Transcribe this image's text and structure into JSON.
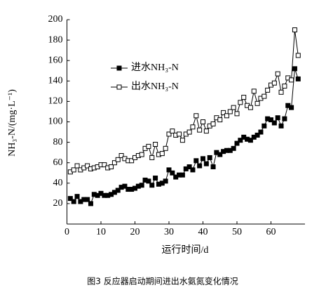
{
  "chart_data": {
    "type": "line",
    "title": "图3 反应器启动期间进出水氨氮变化情况",
    "x_label": "运行时间/d",
    "y_label": "NH₃-N/(mg·L⁻¹)",
    "x": [
      1,
      2,
      3,
      4,
      5,
      6,
      7,
      8,
      9,
      10,
      11,
      12,
      13,
      14,
      15,
      16,
      17,
      18,
      19,
      20,
      21,
      22,
      23,
      24,
      25,
      26,
      27,
      28,
      29,
      30,
      31,
      32,
      33,
      34,
      35,
      36,
      37,
      38,
      39,
      40,
      41,
      42,
      43,
      44,
      45,
      46,
      47,
      48,
      49,
      50,
      51,
      52,
      53,
      54,
      55,
      56,
      57,
      58,
      59,
      60,
      61,
      62,
      63,
      64,
      65,
      66,
      67,
      68
    ],
    "series": [
      {
        "name": "进水NH₃-N",
        "color": "#000000",
        "marker": "filled-square",
        "values": [
          25,
          22,
          27,
          22,
          24,
          24,
          20,
          29,
          28,
          30,
          28,
          28,
          29,
          31,
          33,
          36,
          37,
          34,
          34,
          35,
          37,
          38,
          43,
          42,
          38,
          45,
          39,
          40,
          42,
          53,
          50,
          46,
          48,
          48,
          54,
          56,
          53,
          62,
          57,
          64,
          59,
          65,
          56,
          70,
          68,
          71,
          72,
          72,
          74,
          79,
          82,
          85,
          83,
          82,
          85,
          87,
          90,
          96,
          103,
          102,
          99,
          104,
          96,
          103,
          116,
          114,
          152,
          142
        ]
      },
      {
        "name": "出水NH₃-N",
        "color": "#000000",
        "marker": "open-square",
        "values": [
          51,
          53,
          57,
          53,
          55,
          57,
          54,
          55,
          56,
          58,
          58,
          55,
          56,
          60,
          63,
          67,
          64,
          62,
          62,
          65,
          67,
          68,
          74,
          76,
          65,
          78,
          68,
          69,
          74,
          88,
          91,
          87,
          88,
          82,
          88,
          90,
          95,
          106,
          92,
          100,
          91,
          96,
          98,
          104,
          102,
          109,
          106,
          110,
          114,
          108,
          119,
          124,
          116,
          114,
          130,
          118,
          123,
          125,
          131,
          136,
          138,
          147,
          129,
          135,
          143,
          141,
          190,
          165
        ]
      }
    ],
    "xlim": [
      0,
      70
    ],
    "xticks": [
      0,
      10,
      20,
      30,
      40,
      50,
      60
    ],
    "ylim": [
      0,
      200
    ],
    "yticks": [
      20,
      40,
      60,
      80,
      100,
      120,
      140,
      160,
      180,
      200
    ]
  }
}
